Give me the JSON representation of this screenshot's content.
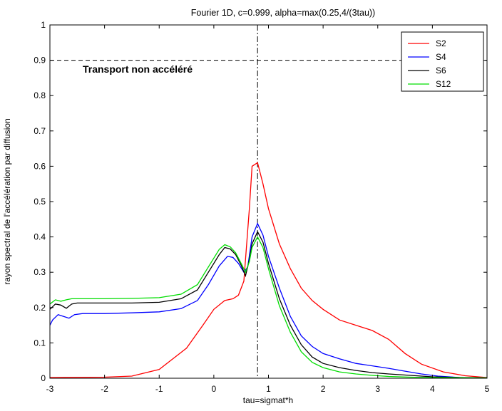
{
  "chart_data": {
    "type": "line",
    "title": "Fourier 1D, c=0.999, alpha=max(0.25,4/(3tau))",
    "xlabel": "tau=sigmat*h",
    "ylabel": "rayon spectral de l'accélération par diffusion",
    "xlim": [
      -3,
      5
    ],
    "ylim": [
      0,
      1
    ],
    "xticks": [
      "-3",
      "-2",
      "-1",
      "0",
      "1",
      "2",
      "3",
      "4",
      "5"
    ],
    "yticks": [
      "0",
      "0.1",
      "0.2",
      "0.3",
      "0.4",
      "0.5",
      "0.6",
      "0.7",
      "0.8",
      "0.9",
      "1"
    ],
    "grid": false,
    "legend_position": "top-right",
    "reference_lines": {
      "horizontal": {
        "y": 0.9,
        "style": "dashed"
      },
      "vertical": {
        "x": 0.8,
        "style": "dash-dot"
      }
    },
    "annotation": {
      "text": "Transport non accéléré",
      "x": -2.4,
      "y": 0.875
    },
    "series": [
      {
        "name": "S2",
        "color": "#ff0000",
        "points": [
          [
            -3,
            0.002
          ],
          [
            -2,
            0.003
          ],
          [
            -1.5,
            0.006
          ],
          [
            -1,
            0.025
          ],
          [
            -0.5,
            0.085
          ],
          [
            -0.2,
            0.15
          ],
          [
            0,
            0.195
          ],
          [
            0.2,
            0.22
          ],
          [
            0.35,
            0.225
          ],
          [
            0.45,
            0.235
          ],
          [
            0.55,
            0.275
          ],
          [
            0.65,
            0.48
          ],
          [
            0.7,
            0.6
          ],
          [
            0.8,
            0.61
          ],
          [
            0.9,
            0.55
          ],
          [
            1,
            0.48
          ],
          [
            1.2,
            0.38
          ],
          [
            1.4,
            0.31
          ],
          [
            1.6,
            0.255
          ],
          [
            1.8,
            0.22
          ],
          [
            2,
            0.195
          ],
          [
            2.3,
            0.165
          ],
          [
            2.6,
            0.15
          ],
          [
            2.9,
            0.135
          ],
          [
            3.2,
            0.11
          ],
          [
            3.5,
            0.07
          ],
          [
            3.8,
            0.04
          ],
          [
            4.2,
            0.018
          ],
          [
            4.6,
            0.007
          ],
          [
            5,
            0.002
          ]
        ]
      },
      {
        "name": "S4",
        "color": "#0000ff",
        "points": [
          [
            -3,
            0.15
          ],
          [
            -2.95,
            0.165
          ],
          [
            -2.85,
            0.18
          ],
          [
            -2.75,
            0.175
          ],
          [
            -2.65,
            0.17
          ],
          [
            -2.55,
            0.18
          ],
          [
            -2.4,
            0.183
          ],
          [
            -2,
            0.183
          ],
          [
            -1.5,
            0.185
          ],
          [
            -1,
            0.188
          ],
          [
            -0.6,
            0.197
          ],
          [
            -0.3,
            0.22
          ],
          [
            -0.1,
            0.265
          ],
          [
            0.1,
            0.318
          ],
          [
            0.25,
            0.345
          ],
          [
            0.35,
            0.342
          ],
          [
            0.45,
            0.325
          ],
          [
            0.55,
            0.3
          ],
          [
            0.62,
            0.315
          ],
          [
            0.7,
            0.4
          ],
          [
            0.8,
            0.438
          ],
          [
            0.9,
            0.405
          ],
          [
            1,
            0.345
          ],
          [
            1.2,
            0.255
          ],
          [
            1.4,
            0.175
          ],
          [
            1.6,
            0.12
          ],
          [
            1.8,
            0.09
          ],
          [
            2,
            0.07
          ],
          [
            2.3,
            0.055
          ],
          [
            2.6,
            0.042
          ],
          [
            2.9,
            0.035
          ],
          [
            3.2,
            0.028
          ],
          [
            3.5,
            0.02
          ],
          [
            3.8,
            0.012
          ],
          [
            4.1,
            0.006
          ],
          [
            4.5,
            0.002
          ],
          [
            5,
            0.001
          ]
        ]
      },
      {
        "name": "S6",
        "color": "#000000",
        "points": [
          [
            -3,
            0.195
          ],
          [
            -2.9,
            0.21
          ],
          [
            -2.8,
            0.207
          ],
          [
            -2.7,
            0.198
          ],
          [
            -2.6,
            0.21
          ],
          [
            -2.5,
            0.213
          ],
          [
            -2,
            0.213
          ],
          [
            -1.5,
            0.213
          ],
          [
            -1,
            0.215
          ],
          [
            -0.6,
            0.225
          ],
          [
            -0.3,
            0.25
          ],
          [
            -0.1,
            0.3
          ],
          [
            0.1,
            0.35
          ],
          [
            0.2,
            0.37
          ],
          [
            0.3,
            0.366
          ],
          [
            0.4,
            0.35
          ],
          [
            0.5,
            0.32
          ],
          [
            0.58,
            0.29
          ],
          [
            0.65,
            0.335
          ],
          [
            0.7,
            0.38
          ],
          [
            0.8,
            0.415
          ],
          [
            0.9,
            0.385
          ],
          [
            1,
            0.325
          ],
          [
            1.2,
            0.225
          ],
          [
            1.4,
            0.15
          ],
          [
            1.6,
            0.095
          ],
          [
            1.8,
            0.06
          ],
          [
            2,
            0.042
          ],
          [
            2.3,
            0.03
          ],
          [
            2.6,
            0.022
          ],
          [
            2.9,
            0.016
          ],
          [
            3.2,
            0.012
          ],
          [
            3.6,
            0.008
          ],
          [
            4,
            0.004
          ],
          [
            4.5,
            0.002
          ],
          [
            5,
            0.001
          ]
        ]
      },
      {
        "name": "S12",
        "color": "#00dd00",
        "points": [
          [
            -3,
            0.21
          ],
          [
            -2.9,
            0.222
          ],
          [
            -2.8,
            0.218
          ],
          [
            -2.7,
            0.222
          ],
          [
            -2.6,
            0.225
          ],
          [
            -2,
            0.225
          ],
          [
            -1.5,
            0.226
          ],
          [
            -1,
            0.228
          ],
          [
            -0.6,
            0.238
          ],
          [
            -0.3,
            0.265
          ],
          [
            -0.1,
            0.315
          ],
          [
            0.1,
            0.365
          ],
          [
            0.2,
            0.378
          ],
          [
            0.3,
            0.372
          ],
          [
            0.4,
            0.355
          ],
          [
            0.5,
            0.325
          ],
          [
            0.58,
            0.3
          ],
          [
            0.65,
            0.33
          ],
          [
            0.7,
            0.37
          ],
          [
            0.8,
            0.4
          ],
          [
            0.9,
            0.37
          ],
          [
            1,
            0.31
          ],
          [
            1.2,
            0.205
          ],
          [
            1.4,
            0.13
          ],
          [
            1.6,
            0.075
          ],
          [
            1.8,
            0.045
          ],
          [
            2,
            0.03
          ],
          [
            2.3,
            0.018
          ],
          [
            2.6,
            0.012
          ],
          [
            2.9,
            0.008
          ],
          [
            3.2,
            0.005
          ],
          [
            3.6,
            0.003
          ],
          [
            4,
            0.002
          ],
          [
            5,
            0.001
          ]
        ]
      }
    ]
  }
}
